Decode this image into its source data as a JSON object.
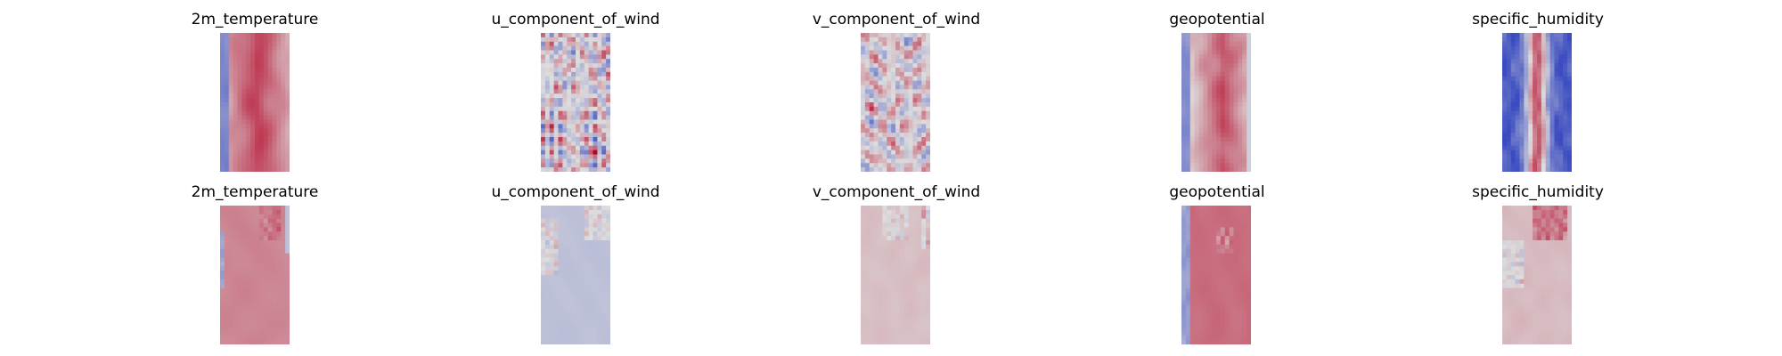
{
  "chart_data": {
    "type": "heatmap",
    "colormap": "coolwarm",
    "colors": {
      "cold": "#3b4cc0",
      "neutral": "#dddddd",
      "warm": "#b40426"
    },
    "grid": false,
    "axes_visible": false,
    "rows": [
      {
        "panels": [
          {
            "title": "2m_temperature",
            "pattern": "tmean"
          },
          {
            "title": "u_component_of_wind",
            "pattern": "umean"
          },
          {
            "title": "v_component_of_wind",
            "pattern": "vmean"
          },
          {
            "title": "geopotential",
            "pattern": "gmean"
          },
          {
            "title": "specific_humidity",
            "pattern": "hmean"
          }
        ]
      },
      {
        "panels": [
          {
            "title": "2m_temperature",
            "pattern": "tstd"
          },
          {
            "title": "u_component_of_wind",
            "pattern": "ustd"
          },
          {
            "title": "v_component_of_wind",
            "pattern": "vstd"
          },
          {
            "title": "geopotential",
            "pattern": "gstd"
          },
          {
            "title": "specific_humidity",
            "pattern": "hstd"
          }
        ]
      }
    ]
  }
}
